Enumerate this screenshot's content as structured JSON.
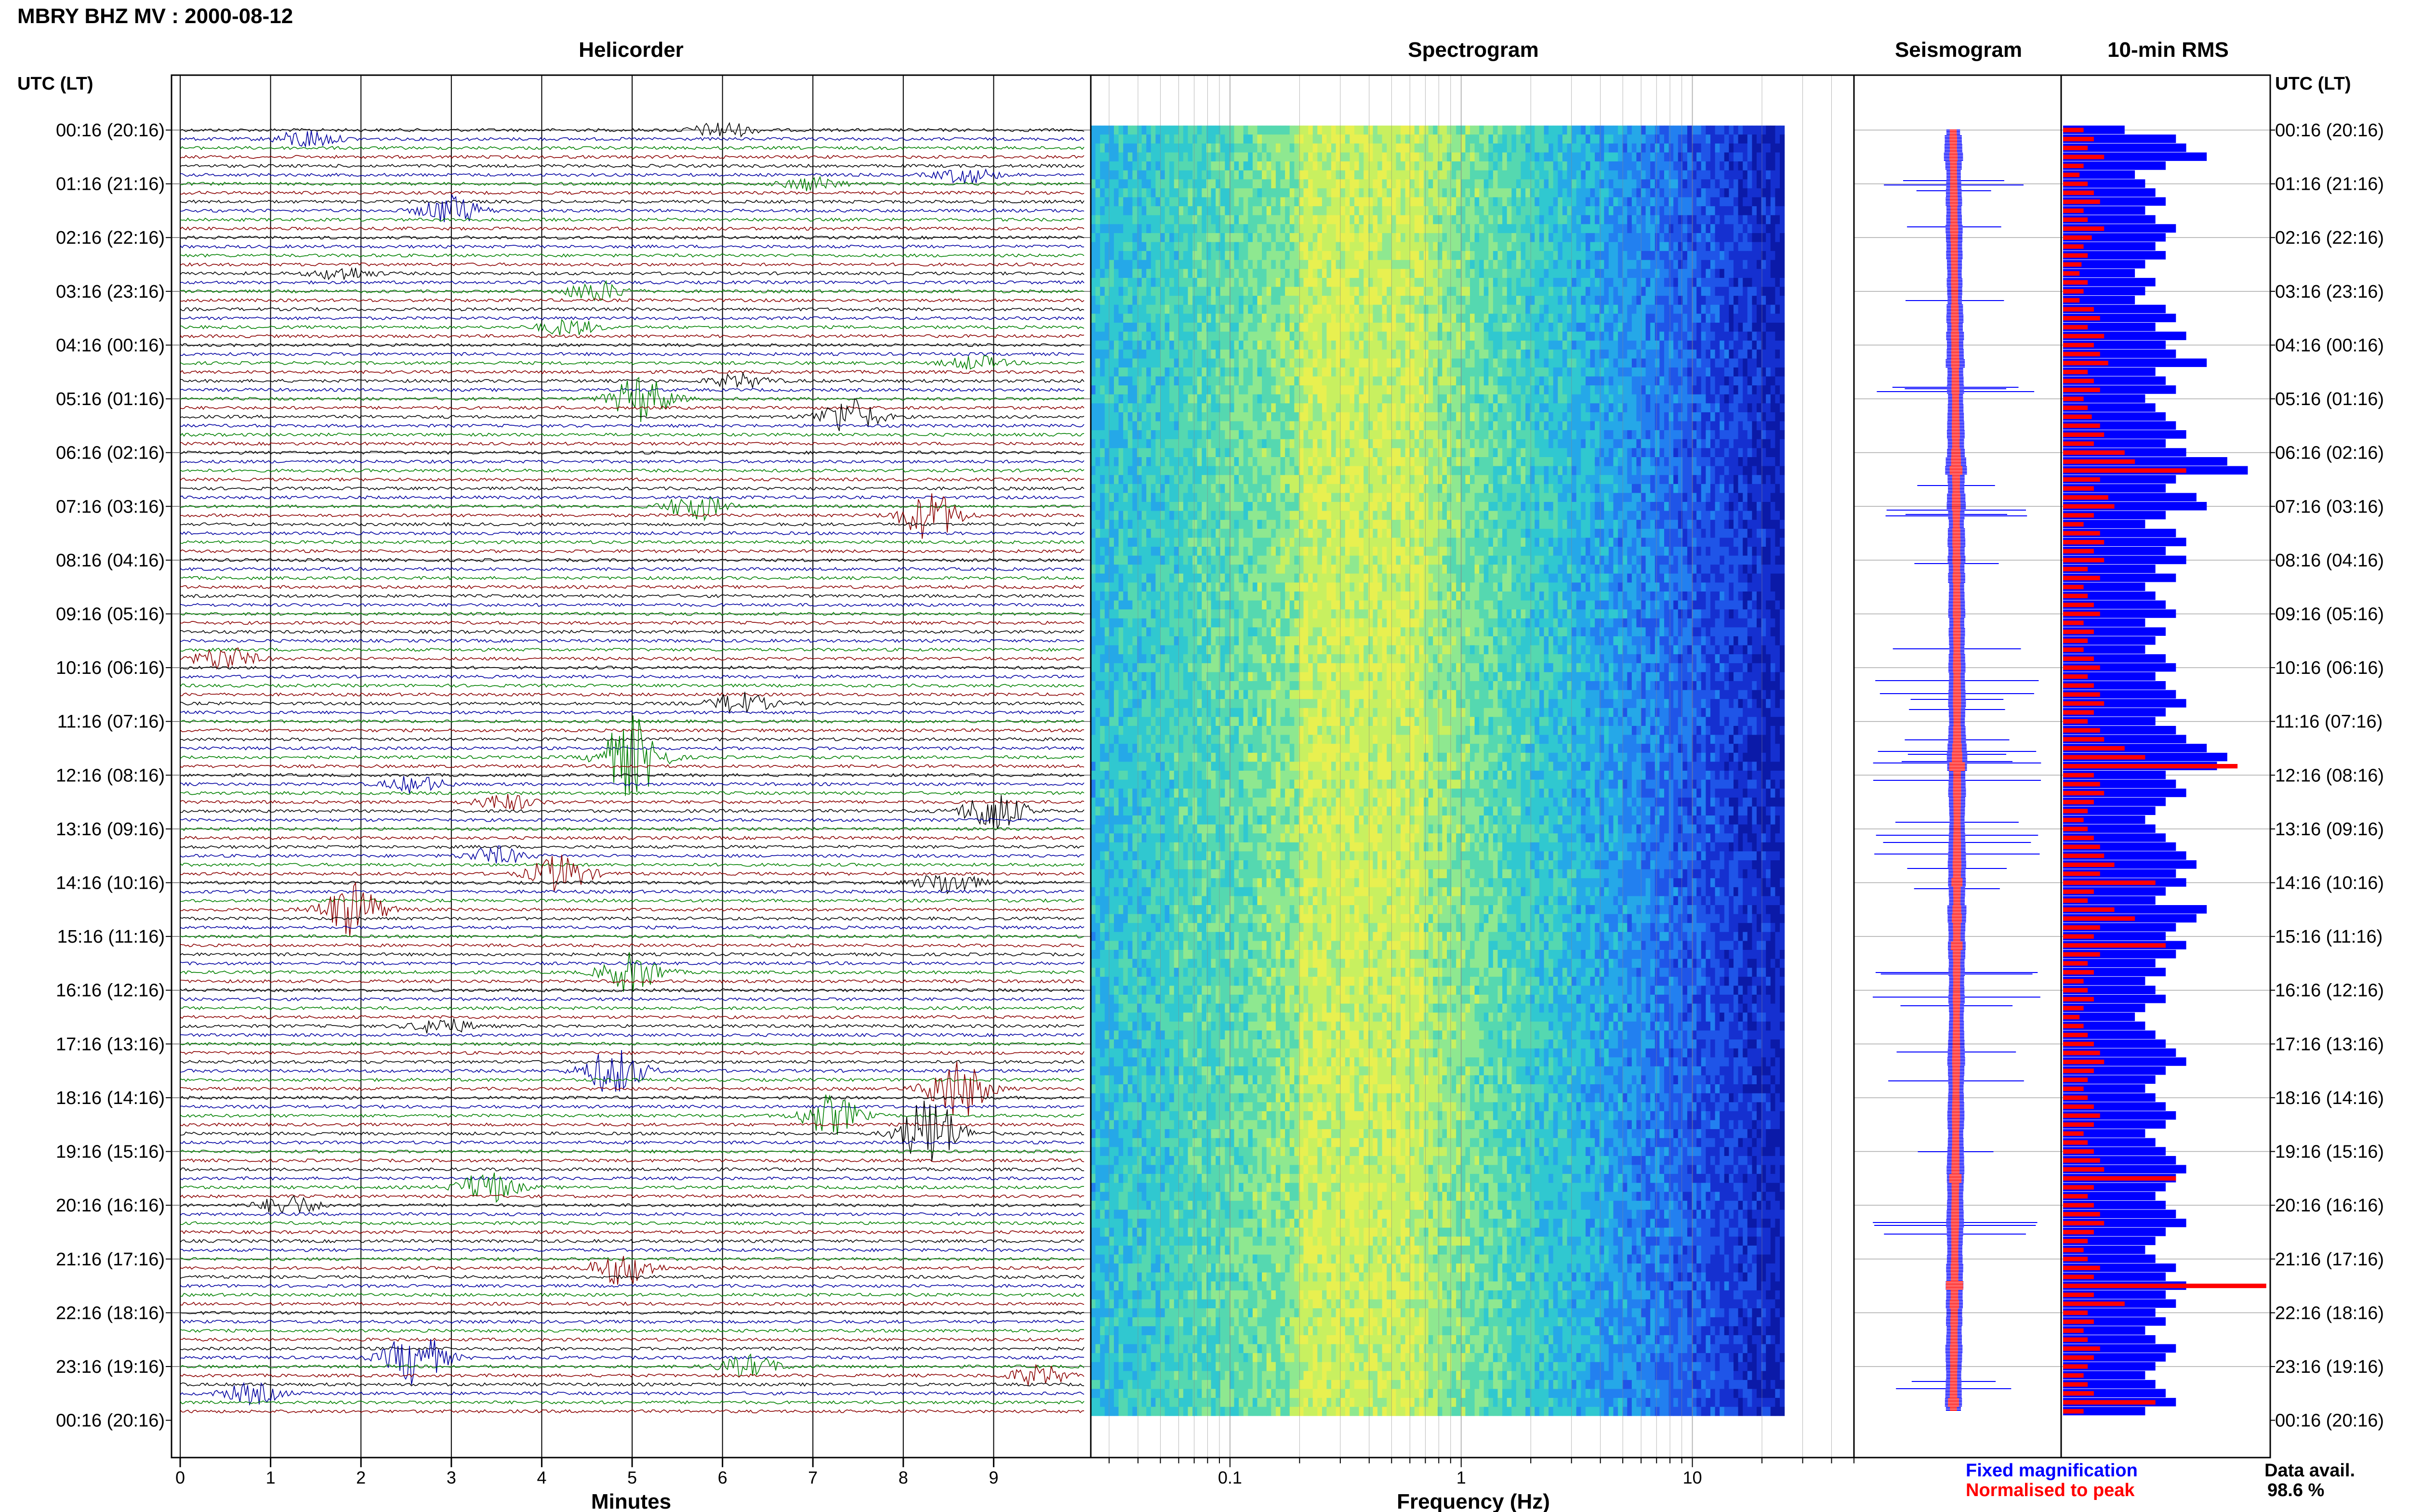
{
  "header": {
    "title": "MBRY BHZ MV : 2000-08-12"
  },
  "panels": {
    "helicorder": "Helicorder",
    "spectrogram": "Spectrogram",
    "seismogram": "Seismogram",
    "rms": "10-min RMS"
  },
  "axes": {
    "left_header": "UTC (LT)",
    "right_header": "UTC (LT)",
    "helicorder_xlabel": "Minutes",
    "spectrogram_xlabel": "Frequency (Hz)"
  },
  "time_labels": [
    "00:16 (20:16)",
    "01:16 (21:16)",
    "02:16 (22:16)",
    "03:16 (23:16)",
    "04:16 (00:16)",
    "05:16 (01:16)",
    "06:16 (02:16)",
    "07:16 (03:16)",
    "08:16 (04:16)",
    "09:16 (05:16)",
    "10:16 (06:16)",
    "11:16 (07:16)",
    "12:16 (08:16)",
    "13:16 (09:16)",
    "14:16 (10:16)",
    "15:16 (11:16)",
    "16:16 (12:16)",
    "17:16 (13:16)",
    "18:16 (14:16)",
    "19:16 (15:16)",
    "20:16 (16:16)",
    "21:16 (17:16)",
    "22:16 (18:16)",
    "23:16 (19:16)",
    "00:16 (20:16)"
  ],
  "legend": {
    "fixed": "Fixed magnification",
    "normalised": "Normalised to peak",
    "fixed_color": "#0000ff",
    "normalised_color": "#ff0000"
  },
  "availability": {
    "label": "Data avail.",
    "value": "98.6 %"
  },
  "colors": {
    "trace_cycle": [
      "#000000",
      "#0000a0",
      "#008000",
      "#8b0000"
    ],
    "rms_blue": "#0000ff",
    "rms_red": "#ff0000"
  },
  "chart_data": [
    {
      "type": "line",
      "name": "helicorder",
      "title": "Helicorder",
      "xlabel": "Minutes",
      "xlim": [
        0,
        10
      ],
      "x_ticks": [
        0,
        1,
        2,
        3,
        4,
        5,
        6,
        7,
        8,
        9
      ],
      "rows": 144,
      "events": [
        {
          "row": 0,
          "minute": 6.0,
          "amp": 1.2
        },
        {
          "row": 1,
          "minute": 1.4,
          "amp": 1.4
        },
        {
          "row": 5,
          "minute": 8.7,
          "amp": 1.2
        },
        {
          "row": 6,
          "minute": 7.0,
          "amp": 1.0
        },
        {
          "row": 9,
          "minute": 3.0,
          "amp": 2.2
        },
        {
          "row": 16,
          "minute": 1.8,
          "amp": 1.0
        },
        {
          "row": 18,
          "minute": 4.6,
          "amp": 1.5
        },
        {
          "row": 22,
          "minute": 4.3,
          "amp": 1.2
        },
        {
          "row": 26,
          "minute": 8.8,
          "amp": 1.0
        },
        {
          "row": 28,
          "minute": 6.2,
          "amp": 1.0
        },
        {
          "row": 30,
          "minute": 5.1,
          "amp": 3.5
        },
        {
          "row": 32,
          "minute": 7.4,
          "amp": 2.8
        },
        {
          "row": 42,
          "minute": 5.7,
          "amp": 2.0
        },
        {
          "row": 43,
          "minute": 8.3,
          "amp": 3.6
        },
        {
          "row": 59,
          "minute": 0.5,
          "amp": 1.8
        },
        {
          "row": 64,
          "minute": 6.2,
          "amp": 1.6
        },
        {
          "row": 70,
          "minute": 5.0,
          "amp": 6.0
        },
        {
          "row": 73,
          "minute": 2.6,
          "amp": 1.2
        },
        {
          "row": 75,
          "minute": 3.6,
          "amp": 1.2
        },
        {
          "row": 76,
          "minute": 9.0,
          "amp": 3.2
        },
        {
          "row": 81,
          "minute": 3.5,
          "amp": 1.3
        },
        {
          "row": 83,
          "minute": 4.2,
          "amp": 2.8
        },
        {
          "row": 84,
          "minute": 8.5,
          "amp": 1.8
        },
        {
          "row": 87,
          "minute": 1.9,
          "amp": 4.0
        },
        {
          "row": 94,
          "minute": 5.0,
          "amp": 3.0
        },
        {
          "row": 100,
          "minute": 2.9,
          "amp": 1.2
        },
        {
          "row": 105,
          "minute": 4.8,
          "amp": 3.5
        },
        {
          "row": 107,
          "minute": 8.6,
          "amp": 4.5
        },
        {
          "row": 110,
          "minute": 7.2,
          "amp": 3.0
        },
        {
          "row": 112,
          "minute": 8.3,
          "amp": 5.5
        },
        {
          "row": 118,
          "minute": 3.4,
          "amp": 2.4
        },
        {
          "row": 120,
          "minute": 1.2,
          "amp": 1.5
        },
        {
          "row": 127,
          "minute": 4.9,
          "amp": 2.5
        },
        {
          "row": 137,
          "minute": 2.6,
          "amp": 4.0
        },
        {
          "row": 138,
          "minute": 6.3,
          "amp": 1.6
        },
        {
          "row": 139,
          "minute": 9.5,
          "amp": 1.5
        },
        {
          "row": 141,
          "minute": 0.8,
          "amp": 1.5
        }
      ]
    },
    {
      "type": "heatmap",
      "name": "spectrogram",
      "title": "Spectrogram",
      "xlabel": "Frequency (Hz)",
      "xscale": "log",
      "xlim": [
        0.025,
        50
      ],
      "x_ticks": [
        0.1,
        1,
        10
      ],
      "x_tick_labels": [
        "0.1",
        "1",
        "10"
      ],
      "data_max_freq": 25,
      "rows": 144,
      "peak_band_hz": [
        0.2,
        0.7
      ]
    },
    {
      "type": "line",
      "name": "seismogram",
      "title": "Seismogram",
      "series": [
        {
          "name": "Fixed magnification",
          "color": "#0000ff"
        },
        {
          "name": "Normalised to peak",
          "color": "#ff0000"
        }
      ]
    },
    {
      "type": "bar",
      "name": "rms",
      "title": "10-min RMS",
      "rows": 144,
      "series": [
        {
          "name": "Fixed magnification",
          "color": "#0000ff"
        },
        {
          "name": "Normalised to peak",
          "color": "#ff0000"
        }
      ],
      "blue_values": [
        0.3,
        0.55,
        0.6,
        0.7,
        0.5,
        0.35,
        0.4,
        0.45,
        0.5,
        0.4,
        0.45,
        0.55,
        0.5,
        0.45,
        0.5,
        0.4,
        0.35,
        0.45,
        0.4,
        0.35,
        0.5,
        0.55,
        0.45,
        0.6,
        0.5,
        0.55,
        0.7,
        0.45,
        0.5,
        0.55,
        0.4,
        0.45,
        0.5,
        0.55,
        0.6,
        0.5,
        0.6,
        0.8,
        0.9,
        0.55,
        0.5,
        0.65,
        0.7,
        0.5,
        0.4,
        0.55,
        0.6,
        0.5,
        0.6,
        0.45,
        0.55,
        0.4,
        0.45,
        0.5,
        0.55,
        0.4,
        0.5,
        0.45,
        0.4,
        0.5,
        0.55,
        0.45,
        0.5,
        0.55,
        0.6,
        0.5,
        0.45,
        0.55,
        0.6,
        0.7,
        0.8,
        0.75,
        0.5,
        0.55,
        0.6,
        0.5,
        0.45,
        0.4,
        0.45,
        0.5,
        0.55,
        0.6,
        0.65,
        0.55,
        0.6,
        0.5,
        0.45,
        0.7,
        0.65,
        0.55,
        0.5,
        0.6,
        0.55,
        0.45,
        0.5,
        0.4,
        0.45,
        0.5,
        0.4,
        0.35,
        0.4,
        0.45,
        0.5,
        0.55,
        0.6,
        0.5,
        0.45,
        0.4,
        0.45,
        0.5,
        0.55,
        0.5,
        0.4,
        0.45,
        0.5,
        0.55,
        0.6,
        0.55,
        0.5,
        0.45,
        0.5,
        0.55,
        0.6,
        0.5,
        0.45,
        0.4,
        0.45,
        0.55,
        0.5,
        0.6,
        0.5,
        0.55,
        0.45,
        0.5,
        0.4,
        0.45,
        0.55,
        0.5,
        0.45,
        0.4,
        0.45,
        0.5,
        0.55,
        0.4
      ],
      "red_values": [
        0.1,
        0.15,
        0.12,
        0.2,
        0.1,
        0.08,
        0.12,
        0.15,
        0.18,
        0.1,
        0.12,
        0.2,
        0.14,
        0.1,
        0.12,
        0.09,
        0.08,
        0.12,
        0.1,
        0.08,
        0.15,
        0.18,
        0.12,
        0.2,
        0.15,
        0.18,
        0.22,
        0.12,
        0.15,
        0.18,
        0.1,
        0.12,
        0.14,
        0.18,
        0.2,
        0.15,
        0.3,
        0.35,
        0.6,
        0.18,
        0.15,
        0.22,
        0.25,
        0.15,
        0.1,
        0.18,
        0.2,
        0.15,
        0.2,
        0.12,
        0.18,
        0.1,
        0.12,
        0.15,
        0.18,
        0.1,
        0.15,
        0.12,
        0.1,
        0.15,
        0.18,
        0.12,
        0.15,
        0.18,
        0.2,
        0.15,
        0.12,
        0.18,
        0.2,
        0.3,
        0.4,
        0.85,
        0.15,
        0.18,
        0.2,
        0.15,
        0.12,
        0.1,
        0.12,
        0.15,
        0.18,
        0.2,
        0.25,
        0.18,
        0.45,
        0.15,
        0.12,
        0.25,
        0.35,
        0.18,
        0.15,
        0.5,
        0.18,
        0.12,
        0.15,
        0.1,
        0.12,
        0.15,
        0.1,
        0.08,
        0.1,
        0.12,
        0.15,
        0.18,
        0.2,
        0.15,
        0.12,
        0.1,
        0.12,
        0.15,
        0.18,
        0.15,
        0.1,
        0.12,
        0.15,
        0.18,
        0.2,
        0.55,
        0.15,
        0.12,
        0.15,
        0.18,
        0.2,
        0.15,
        0.12,
        0.1,
        0.12,
        0.18,
        0.15,
        0.99,
        0.15,
        0.3,
        0.12,
        0.15,
        0.1,
        0.12,
        0.18,
        0.15,
        0.12,
        0.1,
        0.12,
        0.15,
        0.45,
        0.1
      ]
    }
  ]
}
